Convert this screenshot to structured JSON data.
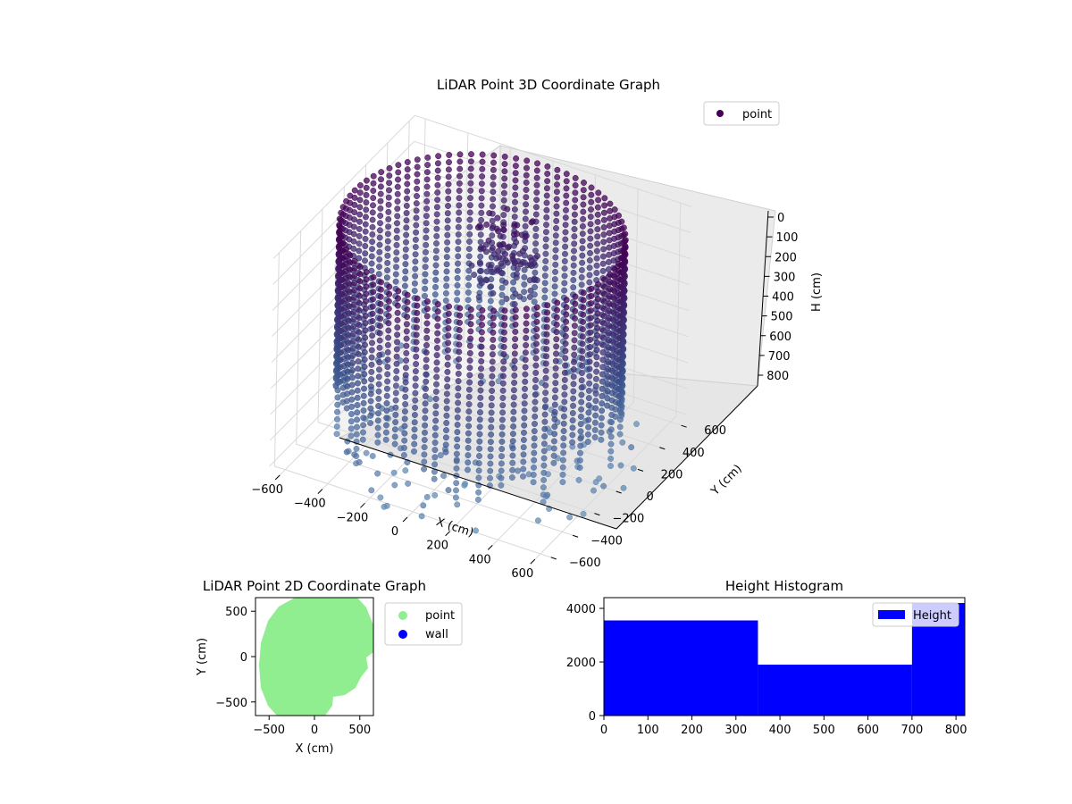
{
  "colors": {
    "viridis_dark": "#440154",
    "viridis_mid": "#3b528b",
    "viridis_light": "#6a90b8",
    "pane_fill": "#f2f2f2",
    "grid": "#d9d9d9",
    "point_green": "#90ee90",
    "wall_blue": "#0000ff",
    "hist_blue": "#0000ff"
  },
  "chart_data": [
    {
      "type": "scatter",
      "title": "LiDAR Point 3D Coordinate Graph",
      "xlabel": "X (cm)",
      "ylabel": "Y (cm)",
      "zlabel": "H (cm)",
      "xlim": [
        -650,
        650
      ],
      "ylim": [
        -650,
        650
      ],
      "zlim": [
        0,
        820
      ],
      "z_inverted": true,
      "xticks": [
        -600,
        -400,
        -200,
        0,
        200,
        400,
        600
      ],
      "yticks": [
        -600,
        -400,
        -200,
        0,
        200,
        400,
        600
      ],
      "zticks": [
        0,
        100,
        200,
        300,
        400,
        500,
        600,
        700,
        800
      ],
      "legend": [
        "point"
      ],
      "legend_position": "upper-right",
      "colormap": "viridis",
      "description_series": {
        "name": "point",
        "shape": "cylindrical wall of radius approx 600 spanning heights 0 to 800, plus scattered floor points and an inner structure near heights 200-400"
      }
    },
    {
      "type": "scatter",
      "title": "LiDAR Point 2D Coordinate Graph",
      "xlabel": "X (cm)",
      "ylabel": "Y (cm)",
      "xlim": [
        -650,
        650
      ],
      "ylim": [
        -650,
        650
      ],
      "xticks": [
        -500,
        0,
        500
      ],
      "yticks": [
        -500,
        0,
        500
      ],
      "legend": [
        "point",
        "wall"
      ],
      "legend_position": "outside-right",
      "series": [
        {
          "name": "point",
          "color": "#90ee90"
        },
        {
          "name": "wall",
          "color": "#0000ff"
        }
      ]
    },
    {
      "type": "bar",
      "title": "Height Histogram",
      "xlim": [
        0,
        820
      ],
      "ylim": [
        0,
        4400
      ],
      "xticks": [
        0,
        100,
        200,
        300,
        400,
        500,
        600,
        700,
        800
      ],
      "yticks": [
        0,
        2000,
        4000
      ],
      "legend": [
        "Height"
      ],
      "legend_position": "upper-right",
      "bins": [
        {
          "start": 0,
          "end": 350,
          "count": 3550
        },
        {
          "start": 350,
          "end": 700,
          "count": 1900
        },
        {
          "start": 700,
          "end": 820,
          "count": 4200
        }
      ]
    }
  ]
}
